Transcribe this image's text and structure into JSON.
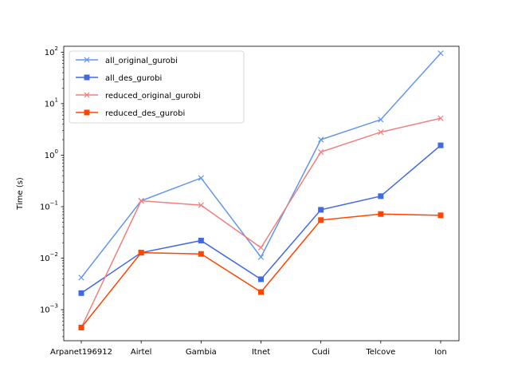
{
  "chart_data": {
    "type": "line",
    "title": "",
    "xlabel": "",
    "ylabel": "Time (s)",
    "yscale": "log",
    "ylim": [
      0.00025,
      130
    ],
    "yticks": [
      {
        "value": 0.001,
        "base": "10",
        "exp": "−3"
      },
      {
        "value": 0.01,
        "base": "10",
        "exp": "−2"
      },
      {
        "value": 0.1,
        "base": "10",
        "exp": "−1"
      },
      {
        "value": 1,
        "base": "10",
        "exp": "0"
      },
      {
        "value": 10,
        "base": "10",
        "exp": "1"
      },
      {
        "value": 100,
        "base": "10",
        "exp": "2"
      }
    ],
    "categories": [
      "Arpanet196912",
      "Airtel",
      "Gambia",
      "Itnet",
      "Cudi",
      "Telcove",
      "Ion"
    ],
    "grid": false,
    "legend_position": "top-left",
    "series": [
      {
        "name": "all_original_gurobi",
        "color": "#6495ED",
        "marker": "x",
        "values": [
          0.0042,
          0.13,
          0.36,
          0.0105,
          2.0,
          4.9,
          95
        ]
      },
      {
        "name": "all_des_gurobi",
        "color": "#4169E1",
        "marker": "square",
        "values": [
          0.0021,
          0.0128,
          0.022,
          0.0039,
          0.087,
          0.16,
          1.55
        ]
      },
      {
        "name": "reduced_original_gurobi",
        "color": "#F08080",
        "marker": "x",
        "values": [
          0.00045,
          0.13,
          0.107,
          0.016,
          1.15,
          2.8,
          5.2
        ]
      },
      {
        "name": "reduced_des_gurobi",
        "color": "#FF4500",
        "marker": "square",
        "values": [
          0.00045,
          0.0128,
          0.0121,
          0.0022,
          0.055,
          0.072,
          0.068
        ]
      }
    ]
  }
}
